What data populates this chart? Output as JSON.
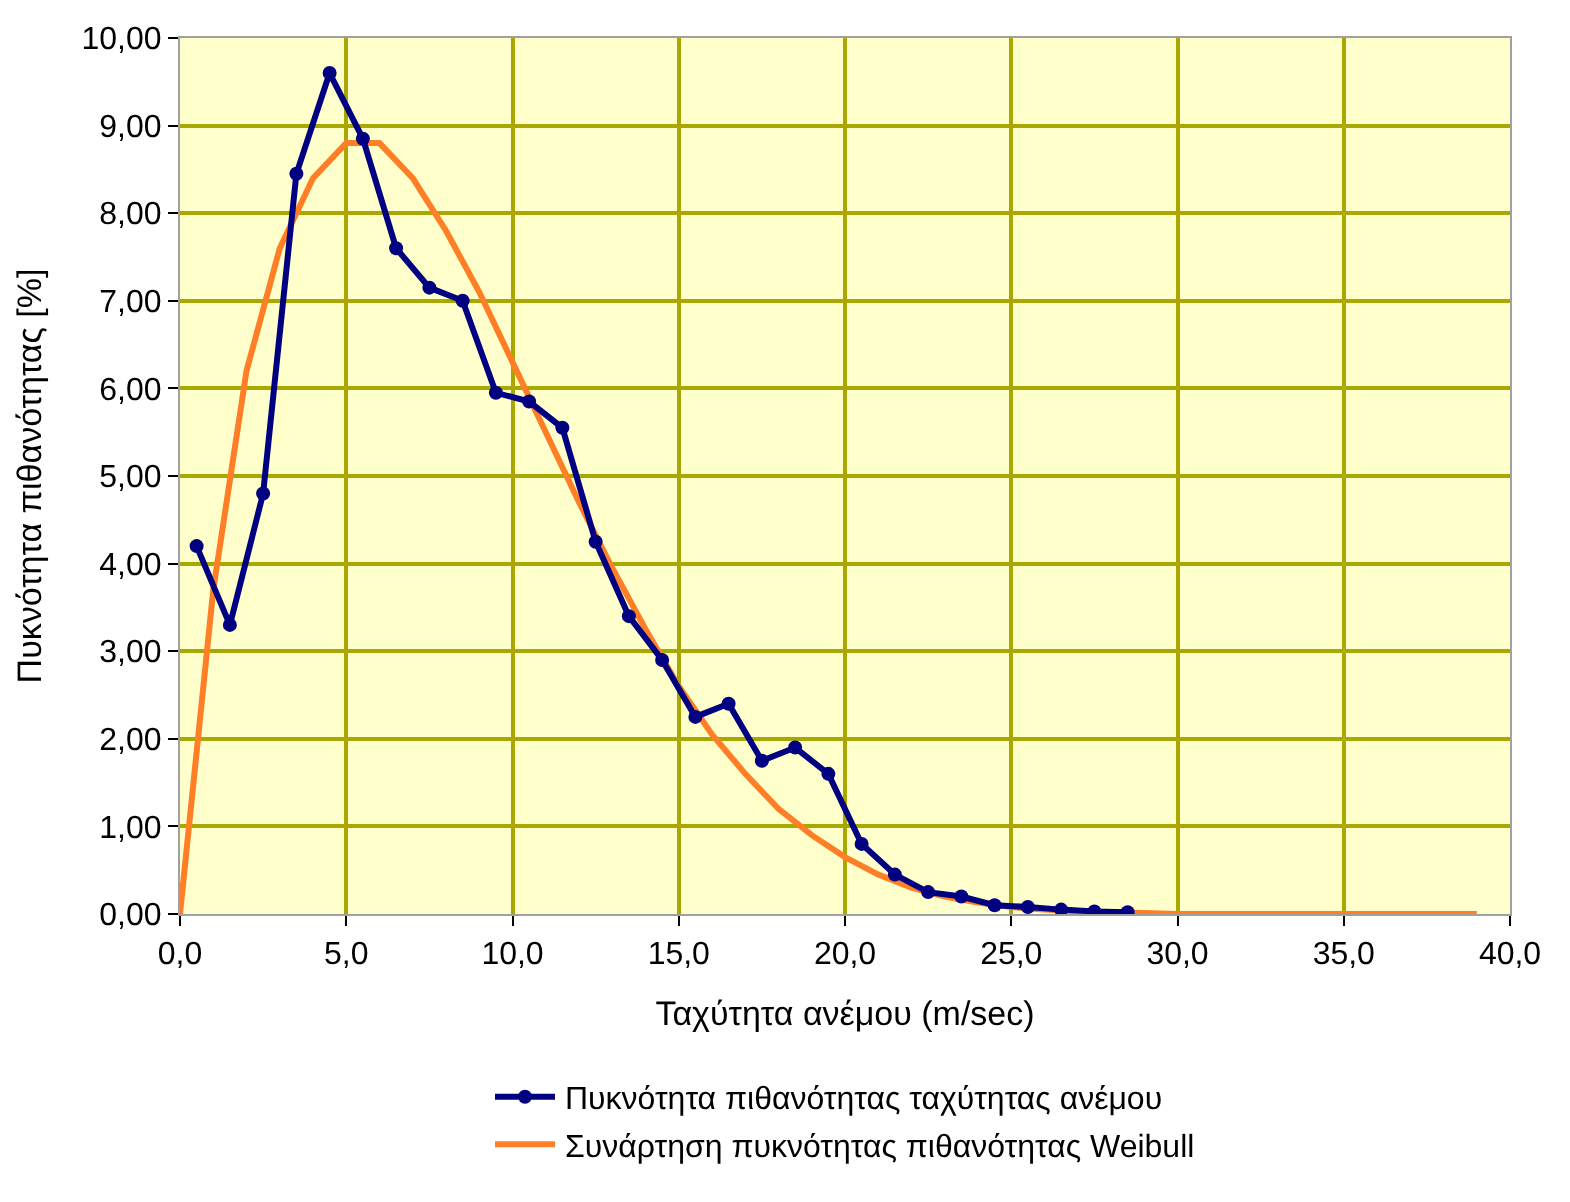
{
  "chart_data": {
    "type": "line",
    "xlabel": "Ταχύτητα ανέμου (m/sec)",
    "ylabel": "Πυκνότητα πιθανότητας [%]",
    "xlim": [
      0,
      40
    ],
    "ylim": [
      0,
      10
    ],
    "xticks": [
      {
        "value": 0,
        "label": "0,0"
      },
      {
        "value": 5,
        "label": "5,0"
      },
      {
        "value": 10,
        "label": "10,0"
      },
      {
        "value": 15,
        "label": "15,0"
      },
      {
        "value": 20,
        "label": "20,0"
      },
      {
        "value": 25,
        "label": "25,0"
      },
      {
        "value": 30,
        "label": "30,0"
      },
      {
        "value": 35,
        "label": "35,0"
      },
      {
        "value": 40,
        "label": "40,0"
      }
    ],
    "yticks": [
      {
        "value": 0,
        "label": "0,00"
      },
      {
        "value": 1,
        "label": "1,00"
      },
      {
        "value": 2,
        "label": "2,00"
      },
      {
        "value": 3,
        "label": "3,00"
      },
      {
        "value": 4,
        "label": "4,00"
      },
      {
        "value": 5,
        "label": "5,00"
      },
      {
        "value": 6,
        "label": "6,00"
      },
      {
        "value": 7,
        "label": "7,00"
      },
      {
        "value": 8,
        "label": "8,00"
      },
      {
        "value": 9,
        "label": "9,00"
      },
      {
        "value": 10,
        "label": "10,00"
      }
    ],
    "grid": true,
    "legend": "bottom",
    "series": [
      {
        "name": "Πυκνότητα πιθανότητας ταχύτητας ανέμου",
        "color": "#000080",
        "marker": "circle",
        "x": [
          0.5,
          1.5,
          2.5,
          3.5,
          4.5,
          5.5,
          6.5,
          7.5,
          8.5,
          9.5,
          10.5,
          11.5,
          12.5,
          13.5,
          14.5,
          15.5,
          16.5,
          17.5,
          18.5,
          19.5,
          20.5,
          21.5,
          22.5,
          23.5,
          24.5,
          25.5,
          26.5,
          27.5,
          28.5
        ],
        "values": [
          4.2,
          3.3,
          4.8,
          8.45,
          9.6,
          8.85,
          7.6,
          7.15,
          7.0,
          5.95,
          5.85,
          5.55,
          4.25,
          3.4,
          2.9,
          2.25,
          2.4,
          1.75,
          1.9,
          1.6,
          0.8,
          0.45,
          0.25,
          0.2,
          0.1,
          0.08,
          0.05,
          0.03,
          0.02
        ]
      },
      {
        "name": "Συνάρτηση πυκνότητας πιθανότητας Weibull",
        "color": "#ff7f27",
        "marker": "none",
        "x": [
          0,
          1,
          2,
          3,
          4,
          5,
          6,
          7,
          8,
          9,
          10,
          11,
          12,
          13,
          14,
          15,
          16,
          17,
          18,
          19,
          20,
          21,
          22,
          23,
          24,
          25,
          26,
          27,
          28,
          29,
          30,
          31,
          32,
          33,
          34,
          35,
          36,
          37,
          38,
          39
        ],
        "values": [
          0,
          3.7,
          6.2,
          7.6,
          8.4,
          8.8,
          8.8,
          8.4,
          7.8,
          7.1,
          6.3,
          5.5,
          4.7,
          3.95,
          3.25,
          2.6,
          2.05,
          1.6,
          1.2,
          0.9,
          0.65,
          0.45,
          0.3,
          0.2,
          0.13,
          0.08,
          0.05,
          0.03,
          0.02,
          0.01,
          0,
          0,
          0,
          0,
          0,
          0,
          0,
          0,
          0,
          0
        ]
      }
    ]
  }
}
